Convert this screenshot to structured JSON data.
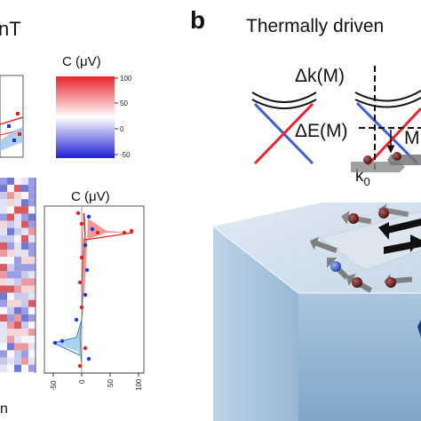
{
  "left_panel": {
    "title_fragment": "nT",
    "bottom_fragment": "n",
    "colorbar": {
      "label": "C (μV)",
      "ticks": [
        "100",
        "50",
        "0",
        "-50"
      ],
      "colors": {
        "high": "#e8242c",
        "mid": "#ffffff",
        "low": "#1f1fd6"
      }
    },
    "profile_plot": {
      "title": "C (μV)",
      "x_ticks": [
        "-50",
        "0",
        "50",
        "100"
      ]
    }
  },
  "right_panel": {
    "panel_letter": "b",
    "title": "Thermally driven",
    "labels": {
      "delta_k": "Δk(M)",
      "delta_e": "ΔE(M)",
      "m_fragment": "M",
      "k0": "k",
      "k0_sub": "0"
    }
  }
}
